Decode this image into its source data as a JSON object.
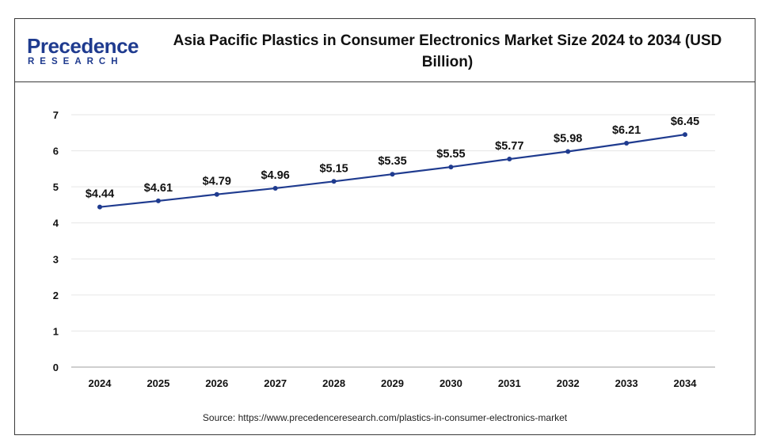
{
  "logo": {
    "name": "Precedence",
    "sub": "RESEARCH"
  },
  "title": "Asia Pacific Plastics in Consumer Electronics Market Size 2024 to 2034 (USD Billion)",
  "source": "Source: https://www.precedenceresearch.com/plastics-in-consumer-electronics-market",
  "colors": {
    "line": "#1f3b8f",
    "marker": "#1f3b8f",
    "grid": "#e6e6e6",
    "axis": "#bfbfbf",
    "text": "#111111"
  },
  "chart_data": {
    "type": "line",
    "title": "Asia Pacific Plastics in Consumer Electronics Market Size 2024 to 2034 (USD Billion)",
    "xlabel": "",
    "ylabel": "",
    "categories": [
      "2024",
      "2025",
      "2026",
      "2027",
      "2028",
      "2029",
      "2030",
      "2031",
      "2032",
      "2033",
      "2034"
    ],
    "series": [
      {
        "values": [
          4.44,
          4.61,
          4.79,
          4.96,
          5.15,
          5.35,
          5.55,
          5.77,
          5.98,
          6.21,
          6.45
        ]
      }
    ],
    "data_labels": [
      "$4.44",
      "$4.61",
      "$4.79",
      "$4.96",
      "$5.15",
      "$5.35",
      "$5.55",
      "$5.77",
      "$5.98",
      "$6.21",
      "$6.45"
    ],
    "yticks": [
      "0",
      "1",
      "2",
      "3",
      "4",
      "5",
      "6",
      "7"
    ],
    "ylim": [
      0,
      7
    ],
    "grid": true,
    "legend": "none"
  }
}
